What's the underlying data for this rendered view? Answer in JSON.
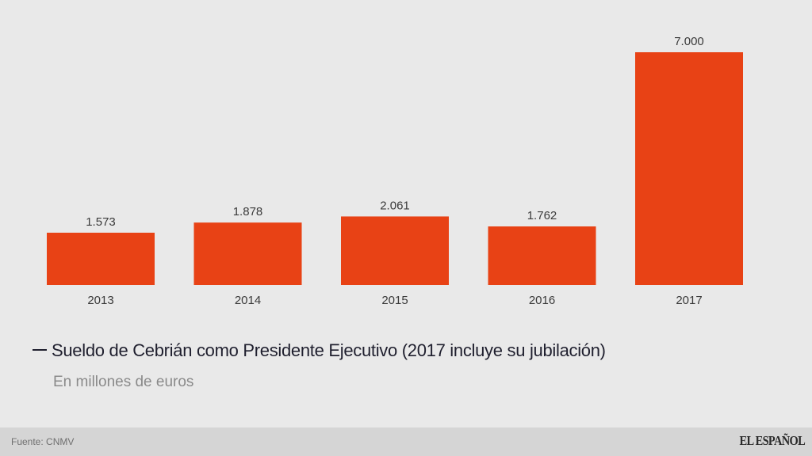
{
  "chart_data": {
    "type": "bar",
    "title": "Sueldo de Cebrián como Presidente Ejecutivo (2017 incluye su jubilación)",
    "subtitle": "En millones de euros",
    "categories": [
      "2013",
      "2014",
      "2015",
      "2016",
      "2017"
    ],
    "values": [
      1.573,
      1.878,
      2.061,
      1.762,
      7.0
    ],
    "value_labels": [
      "1.573",
      "1.878",
      "2.061",
      "1.762",
      "7.000"
    ],
    "xlabel": "",
    "ylabel": "",
    "ylim": [
      0,
      7.0
    ],
    "grid": false,
    "legend": "bottom-left",
    "bar_color": "#e84215"
  },
  "legend": {
    "label": "Sueldo de Cebrián como Presidente Ejecutivo (2017 incluye su jubilación)"
  },
  "subtitle": "En millones de euros",
  "footer": {
    "source": "Fuente: CNMV",
    "brand": "EL ESPAÑOL"
  }
}
